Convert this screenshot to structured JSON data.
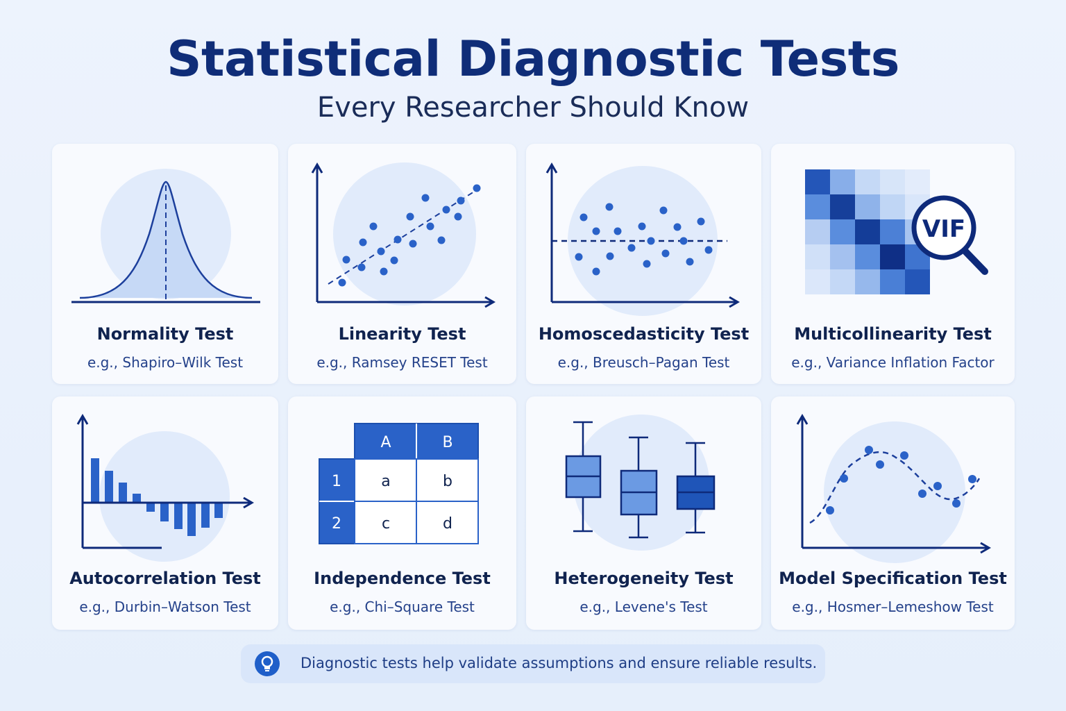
{
  "header": {
    "title": "Statistical Diagnostic Tests",
    "subtitle": "Every Researcher Should Know"
  },
  "cards": [
    {
      "name": "Normality Test",
      "example": "e.g., Shapiro–Wilk Test"
    },
    {
      "name": "Linearity Test",
      "example": "e.g., Ramsey RESET Test"
    },
    {
      "name": "Homoscedasticity Test",
      "example": "e.g., Breusch–Pagan Test"
    },
    {
      "name": "Multicollinearity Test",
      "example": "e.g., Variance Inflation Factor"
    },
    {
      "name": "Autocorrelation Test",
      "example": "e.g., Durbin–Watson Test"
    },
    {
      "name": "Independence Test",
      "example": "e.g., Chi–Square Test"
    },
    {
      "name": "Heterogeneity Test",
      "example": "e.g., Levene's Test"
    },
    {
      "name": "Model Specification Test",
      "example": "e.g., Hosmer–Lemeshow Test"
    }
  ],
  "vif_label": "VIF",
  "contingency_table": {
    "col_headers": [
      "A",
      "B"
    ],
    "row_headers": [
      "1",
      "2"
    ],
    "cells": [
      [
        "a",
        "b"
      ],
      [
        "c",
        "d"
      ]
    ]
  },
  "footer_note": "Diagnostic tests help validate assumptions and ensure reliable results.",
  "icons": {
    "footer": "lightbulb-icon",
    "vif": "magnifier-icon"
  },
  "colors": {
    "title": "#0f2d78",
    "accent": "#1f5fc9",
    "dark_blue": "#0e2a7a",
    "light_fill": "#dbe7fb"
  }
}
